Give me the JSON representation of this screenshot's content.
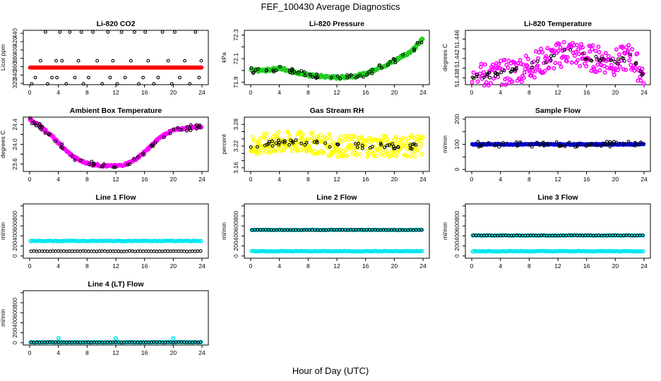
{
  "figure": {
    "title": "FEF_100430  Average Diagnostics",
    "xlabel": "Hour of Day (UTC)"
  },
  "chart_data": [
    {
      "type": "scatter",
      "title": "Li-820 CO2",
      "ylabel": "Licor ppm",
      "xlim": [
        0,
        24
      ],
      "ylim": [
        317,
        447
      ],
      "xticks": [
        0,
        4,
        8,
        12,
        16,
        20,
        24
      ],
      "yticks": [
        320,
        340,
        360,
        380,
        400,
        420,
        440
      ],
      "series": [
        {
          "name": "median",
          "color": "#ff0000",
          "x": [
            0,
            24
          ],
          "y": [
            358,
            358
          ]
        },
        {
          "name": "outliers",
          "color": "#000000",
          "x": [
            0.3,
            0.8,
            1.5,
            2.2,
            2.5,
            3.1,
            3.7,
            3.8,
            4.2,
            4.5,
            5.1,
            5.6,
            6.3,
            6.8,
            7.2,
            7.5,
            8.2,
            8.8,
            9.4,
            10.1,
            10.9,
            11.2,
            11.6,
            12.2,
            12.8,
            13.3,
            14.1,
            14.6,
            15.2,
            15.8,
            16.1,
            16.5,
            17.3,
            17.9,
            18.5,
            19.3,
            19.8,
            20.2,
            20.9,
            21.6,
            22.3,
            23.1,
            23.6,
            23.9
          ],
          "y": [
            319,
            334,
            374,
            443,
            319,
            334,
            374,
            334,
            443,
            374,
            319,
            443,
            334,
            374,
            443,
            319,
            334,
            443,
            374,
            319,
            443,
            334,
            374,
            319,
            443,
            334,
            374,
            443,
            319,
            334,
            443,
            374,
            319,
            334,
            443,
            374,
            319,
            443,
            334,
            374,
            319,
            443,
            334,
            374
          ]
        }
      ]
    },
    {
      "type": "scatter",
      "title": "Li-820 Pressure",
      "ylabel": "kPa",
      "xlim": [
        0,
        24
      ],
      "ylim": [
        71.88,
        72.34
      ],
      "xticks": [
        0,
        4,
        8,
        12,
        16,
        20,
        24
      ],
      "yticks": [
        71.9,
        72.0,
        72.1,
        72.2,
        72.3
      ],
      "yticklabels": [
        "71.9",
        "",
        "72.1",
        "",
        "72.3"
      ],
      "series": [
        {
          "name": "trace",
          "color": "#22cc22",
          "x": [
            0,
            2,
            4,
            6,
            8,
            10,
            12,
            14,
            16,
            17,
            18,
            19,
            20,
            21,
            22,
            23,
            24
          ],
          "y": [
            72.0,
            72.0,
            72.02,
            71.99,
            71.96,
            71.95,
            71.94,
            71.95,
            71.97,
            72.0,
            72.03,
            72.05,
            72.08,
            72.12,
            72.15,
            72.2,
            72.27
          ]
        }
      ]
    },
    {
      "type": "scatter",
      "title": "Li-820 Temperature",
      "ylabel": "degrees C",
      "xlim": [
        0,
        24
      ],
      "ylim": [
        51.4366,
        51.4478
      ],
      "xticks": [
        0,
        4,
        8,
        12,
        16,
        20,
        24
      ],
      "yticks": [
        51.438,
        51.44,
        51.442,
        51.444,
        51.446
      ],
      "yticklabels": [
        "51.438",
        "",
        "51.442",
        "",
        "51.446"
      ],
      "series": [
        {
          "name": "trace",
          "color": "#ff00ff",
          "x": [
            0,
            2,
            4,
            6,
            8,
            10,
            12,
            13,
            14,
            16,
            18,
            20,
            21,
            22,
            23,
            24
          ],
          "y": [
            51.438,
            51.4385,
            51.4388,
            51.4395,
            51.4405,
            51.4415,
            51.4425,
            51.4435,
            51.4432,
            51.4422,
            51.4418,
            51.4412,
            51.4418,
            51.4425,
            51.4405,
            51.4385
          ]
        }
      ]
    },
    {
      "type": "scatter",
      "title": "Ambient Box Temperature",
      "ylabel": "degrees C",
      "xlim": [
        0,
        24
      ],
      "ylim": [
        23.45,
        24.55
      ],
      "xticks": [
        0,
        4,
        8,
        12,
        16,
        20,
        24
      ],
      "yticks": [
        23.6,
        23.8,
        24.0,
        24.2,
        24.4
      ],
      "yticklabels": [
        "23.6",
        "",
        "24.0",
        "",
        "24.4"
      ],
      "series": [
        {
          "name": "trace",
          "color": "#ff00ff",
          "x": [
            0,
            1,
            2,
            3,
            4,
            5,
            6,
            7,
            8,
            9,
            10,
            11,
            12,
            13,
            14,
            15,
            16,
            17,
            18,
            19,
            20,
            21,
            22,
            23,
            24
          ],
          "y": [
            24.5,
            24.42,
            24.3,
            24.18,
            24.03,
            23.88,
            23.76,
            23.67,
            23.62,
            23.59,
            23.57,
            23.56,
            23.56,
            23.58,
            23.64,
            23.72,
            23.84,
            23.98,
            24.12,
            24.22,
            24.28,
            24.31,
            24.33,
            24.35,
            24.36
          ]
        }
      ]
    },
    {
      "type": "scatter",
      "title": "Gas Stream RH",
      "ylabel": "percent",
      "xlim": [
        0,
        24
      ],
      "ylim": [
        3.15,
        3.3
      ],
      "xticks": [
        0,
        4,
        8,
        12,
        16,
        20,
        24
      ],
      "yticks": [
        3.16,
        3.18,
        3.2,
        3.22,
        3.24,
        3.26,
        3.28
      ],
      "yticklabels": [
        "3.16",
        "",
        "",
        "3.22",
        "",
        "",
        "3.28"
      ],
      "series": [
        {
          "name": "trace",
          "color": "#ffff00",
          "x": [
            0,
            4,
            8,
            12,
            16,
            20,
            24
          ],
          "y": [
            3.22,
            3.23,
            3.23,
            3.22,
            3.22,
            3.22,
            3.22
          ]
        }
      ]
    },
    {
      "type": "scatter",
      "title": "Sample Flow",
      "ylabel": "ml/min",
      "xlim": [
        0,
        24
      ],
      "ylim": [
        -8,
        208
      ],
      "xticks": [
        0,
        4,
        8,
        12,
        16,
        20,
        24
      ],
      "yticks": [
        0,
        50,
        100,
        150,
        200
      ],
      "yticklabels": [
        "0",
        "",
        "100",
        "",
        "200"
      ],
      "series": [
        {
          "name": "trace",
          "color": "#0000cc",
          "x": [
            0,
            24
          ],
          "y": [
            100,
            100
          ]
        }
      ]
    },
    {
      "type": "scatter",
      "title": "Line 1 Flow",
      "ylabel": "ml/min",
      "xlim": [
        0,
        24
      ],
      "ylim": [
        -45,
        1040
      ],
      "xticks": [
        0,
        4,
        8,
        12,
        16,
        20,
        24
      ],
      "yticks": [
        0,
        200,
        400,
        600,
        800,
        1000
      ],
      "yticklabels": [
        "0",
        "200",
        "400",
        "600",
        "800",
        ""
      ],
      "series": [
        {
          "name": "cyan",
          "color": "#00e5ee",
          "x": [
            0,
            24
          ],
          "y": [
            300,
            300
          ]
        },
        {
          "name": "black",
          "color": "#000000",
          "x": [
            0,
            24
          ],
          "y": [
            95,
            95
          ]
        }
      ]
    },
    {
      "type": "scatter",
      "title": "Line 2 Flow",
      "ylabel": "ml/min",
      "xlim": [
        0,
        24
      ],
      "ylim": [
        -45,
        1040
      ],
      "xticks": [
        0,
        4,
        8,
        12,
        16,
        20,
        24
      ],
      "yticks": [
        0,
        200,
        400,
        600,
        800,
        1000
      ],
      "yticklabels": [
        "0",
        "200",
        "400",
        "600",
        "800",
        ""
      ],
      "series": [
        {
          "name": "cyan",
          "color": "#00e5ee",
          "x": [
            0,
            24
          ],
          "y": [
            520,
            520
          ]
        },
        {
          "name": "cyan-low",
          "color": "#00e5ee",
          "x": [
            0,
            24
          ],
          "y": [
            95,
            95
          ]
        },
        {
          "name": "black",
          "color": "#000000",
          "x": [
            0,
            24
          ],
          "y": [
            520,
            520
          ]
        }
      ]
    },
    {
      "type": "scatter",
      "title": "Line 3 Flow",
      "ylabel": "ml/min",
      "xlim": [
        0,
        24
      ],
      "ylim": [
        -45,
        1040
      ],
      "xticks": [
        0,
        4,
        8,
        12,
        16,
        20,
        24
      ],
      "yticks": [
        0,
        200,
        400,
        600,
        800,
        1000
      ],
      "yticklabels": [
        "0",
        "200",
        "400",
        "600",
        "800",
        ""
      ],
      "series": [
        {
          "name": "cyan",
          "color": "#00e5ee",
          "x": [
            0,
            24
          ],
          "y": [
            410,
            410
          ]
        },
        {
          "name": "cyan-low",
          "color": "#00e5ee",
          "x": [
            0,
            24
          ],
          "y": [
            95,
            95
          ]
        },
        {
          "name": "black",
          "color": "#000000",
          "x": [
            0,
            24
          ],
          "y": [
            410,
            410
          ]
        }
      ]
    },
    {
      "type": "scatter",
      "title": "Line 4 (LT) Flow",
      "ylabel": "ml/min",
      "xlim": [
        0,
        24
      ],
      "ylim": [
        -45,
        1040
      ],
      "xticks": [
        0,
        4,
        8,
        12,
        16,
        20,
        24
      ],
      "yticks": [
        0,
        200,
        400,
        600,
        800,
        1000
      ],
      "yticklabels": [
        "0",
        "200",
        "400",
        "600",
        "800",
        ""
      ],
      "series": [
        {
          "name": "cyan",
          "color": "#00e5ee",
          "x": [
            0,
            24
          ],
          "y": [
            10,
            10
          ]
        },
        {
          "name": "cyan-spikes",
          "color": "#00e5ee",
          "x": [
            4,
            12,
            20
          ],
          "y": [
            90,
            90,
            90
          ]
        },
        {
          "name": "black",
          "color": "#000000",
          "x": [
            0,
            24
          ],
          "y": [
            10,
            10
          ]
        }
      ]
    }
  ]
}
